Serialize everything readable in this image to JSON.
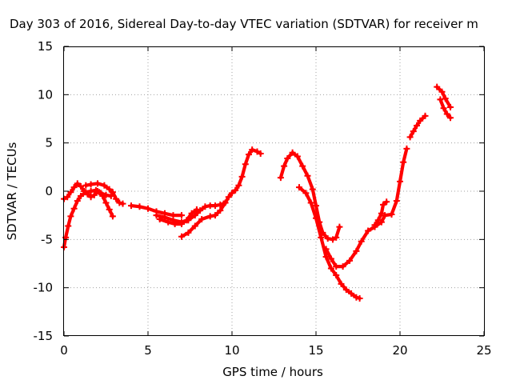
{
  "chart_data": {
    "type": "line",
    "title": "Day 303 of 2016, Sidereal Day-to-day VTEC variation (SDTVAR) for receiver m",
    "xlabel": "GPS time / hours",
    "ylabel": "SDTVAR / TECUs",
    "xlim": [
      0,
      25
    ],
    "ylim": [
      -15,
      15
    ],
    "xticks": [
      0,
      5,
      10,
      15,
      20,
      25
    ],
    "yticks": [
      -15,
      -10,
      -5,
      0,
      5,
      10,
      15
    ],
    "grid": true,
    "color": "#ff0000",
    "series": [
      {
        "name": "trace-1",
        "points": [
          [
            0.0,
            -5.8
          ],
          [
            0.1,
            -4.8
          ],
          [
            0.25,
            -3.6
          ],
          [
            0.4,
            -2.6
          ],
          [
            0.6,
            -1.8
          ],
          [
            0.8,
            -1.0
          ],
          [
            1.0,
            -0.5
          ],
          [
            1.3,
            -0.1
          ],
          [
            1.6,
            0.0
          ],
          [
            1.9,
            0.1
          ],
          [
            2.1,
            -0.1
          ],
          [
            2.3,
            -0.5
          ],
          [
            2.5,
            -1.2
          ],
          [
            2.7,
            -1.9
          ],
          [
            2.9,
            -2.6
          ]
        ]
      },
      {
        "name": "trace-2",
        "points": [
          [
            0.0,
            -0.8
          ],
          [
            0.2,
            -0.6
          ],
          [
            0.4,
            -0.1
          ],
          [
            0.6,
            0.4
          ],
          [
            0.8,
            0.8
          ],
          [
            1.0,
            0.5
          ],
          [
            1.2,
            0.0
          ],
          [
            1.4,
            -0.3
          ],
          [
            1.6,
            -0.6
          ],
          [
            1.8,
            -0.4
          ],
          [
            2.0,
            0.0
          ],
          [
            2.2,
            -0.2
          ],
          [
            2.5,
            -0.4
          ],
          [
            2.8,
            -0.5
          ]
        ]
      },
      {
        "name": "trace-3",
        "points": [
          [
            1.3,
            0.6
          ],
          [
            1.6,
            0.7
          ],
          [
            2.0,
            0.8
          ],
          [
            2.4,
            0.6
          ],
          [
            2.7,
            0.2
          ],
          [
            2.9,
            -0.1
          ],
          [
            3.1,
            -0.8
          ],
          [
            3.3,
            -1.2
          ],
          [
            3.5,
            -1.3
          ]
        ]
      },
      {
        "name": "trace-4",
        "points": [
          [
            4.0,
            -1.5
          ],
          [
            4.5,
            -1.6
          ],
          [
            5.0,
            -1.8
          ],
          [
            5.5,
            -2.1
          ],
          [
            6.0,
            -2.3
          ],
          [
            6.5,
            -2.5
          ],
          [
            7.0,
            -2.5
          ]
        ]
      },
      {
        "name": "trace-5",
        "points": [
          [
            5.5,
            -2.5
          ],
          [
            6.0,
            -2.7
          ],
          [
            6.5,
            -3.0
          ],
          [
            7.0,
            -3.2
          ],
          [
            7.4,
            -3.0
          ],
          [
            7.8,
            -2.5
          ],
          [
            8.1,
            -2.0
          ],
          [
            8.4,
            -1.6
          ],
          [
            8.7,
            -1.5
          ],
          [
            9.0,
            -1.5
          ],
          [
            9.3,
            -1.4
          ],
          [
            9.5,
            -1.3
          ]
        ]
      },
      {
        "name": "trace-6",
        "points": [
          [
            5.7,
            -2.9
          ],
          [
            6.2,
            -3.2
          ],
          [
            6.6,
            -3.4
          ],
          [
            7.0,
            -3.4
          ],
          [
            7.3,
            -3.0
          ],
          [
            7.6,
            -2.3
          ],
          [
            7.9,
            -1.9
          ]
        ]
      },
      {
        "name": "trace-7",
        "points": [
          [
            7.0,
            -4.7
          ],
          [
            7.4,
            -4.3
          ],
          [
            7.8,
            -3.6
          ],
          [
            8.2,
            -2.9
          ],
          [
            8.7,
            -2.6
          ],
          [
            9.0,
            -2.5
          ],
          [
            9.3,
            -2.0
          ],
          [
            9.6,
            -1.2
          ],
          [
            9.8,
            -0.6
          ],
          [
            10.0,
            -0.2
          ],
          [
            10.2,
            0.1
          ],
          [
            10.4,
            0.6
          ],
          [
            10.6,
            1.5
          ],
          [
            10.8,
            2.8
          ],
          [
            11.0,
            3.8
          ],
          [
            11.2,
            4.3
          ],
          [
            11.5,
            4.1
          ],
          [
            11.7,
            3.9
          ]
        ]
      },
      {
        "name": "trace-8",
        "points": [
          [
            12.9,
            1.4
          ],
          [
            13.1,
            2.6
          ],
          [
            13.3,
            3.4
          ],
          [
            13.6,
            4.0
          ],
          [
            13.9,
            3.6
          ],
          [
            14.2,
            2.6
          ],
          [
            14.5,
            1.6
          ],
          [
            14.8,
            0.2
          ],
          [
            15.0,
            -1.5
          ],
          [
            15.2,
            -3.2
          ],
          [
            15.4,
            -4.3
          ],
          [
            15.7,
            -4.9
          ],
          [
            16.0,
            -5.0
          ],
          [
            16.2,
            -4.8
          ],
          [
            16.4,
            -3.7
          ]
        ]
      },
      {
        "name": "trace-9",
        "points": [
          [
            14.0,
            0.4
          ],
          [
            14.4,
            -0.2
          ],
          [
            14.7,
            -1.2
          ],
          [
            15.0,
            -2.8
          ],
          [
            15.3,
            -4.8
          ],
          [
            15.6,
            -6.8
          ],
          [
            15.9,
            -8.0
          ],
          [
            16.2,
            -8.7
          ],
          [
            16.5,
            -9.6
          ],
          [
            16.8,
            -10.2
          ],
          [
            17.1,
            -10.6
          ],
          [
            17.4,
            -11.0
          ],
          [
            17.6,
            -11.1
          ]
        ]
      },
      {
        "name": "trace-10",
        "points": [
          [
            15.6,
            -6.0
          ],
          [
            15.9,
            -7.0
          ],
          [
            16.2,
            -7.8
          ],
          [
            16.6,
            -7.8
          ],
          [
            17.0,
            -7.2
          ],
          [
            17.4,
            -6.2
          ],
          [
            17.7,
            -5.2
          ],
          [
            18.1,
            -4.1
          ],
          [
            18.5,
            -3.7
          ],
          [
            18.9,
            -3.2
          ],
          [
            19.1,
            -2.5
          ],
          [
            19.5,
            -2.4
          ],
          [
            19.8,
            -1.0
          ],
          [
            20.0,
            1.0
          ],
          [
            20.2,
            3.0
          ],
          [
            20.4,
            4.4
          ]
        ]
      },
      {
        "name": "trace-11",
        "points": [
          [
            18.5,
            -3.5
          ],
          [
            18.7,
            -3.0
          ],
          [
            18.9,
            -2.3
          ],
          [
            19.0,
            -1.4
          ],
          [
            19.2,
            -1.1
          ]
        ]
      },
      {
        "name": "trace-12",
        "points": [
          [
            20.6,
            5.6
          ],
          [
            20.8,
            6.2
          ],
          [
            21.0,
            6.8
          ],
          [
            21.2,
            7.3
          ],
          [
            21.5,
            7.8
          ]
        ]
      },
      {
        "name": "trace-13",
        "points": [
          [
            22.2,
            10.8
          ],
          [
            22.5,
            10.3
          ],
          [
            22.7,
            9.6
          ],
          [
            23.0,
            8.7
          ]
        ]
      },
      {
        "name": "trace-14",
        "points": [
          [
            22.4,
            9.5
          ],
          [
            22.6,
            8.6
          ],
          [
            22.8,
            8.0
          ],
          [
            23.0,
            7.6
          ]
        ]
      }
    ]
  }
}
